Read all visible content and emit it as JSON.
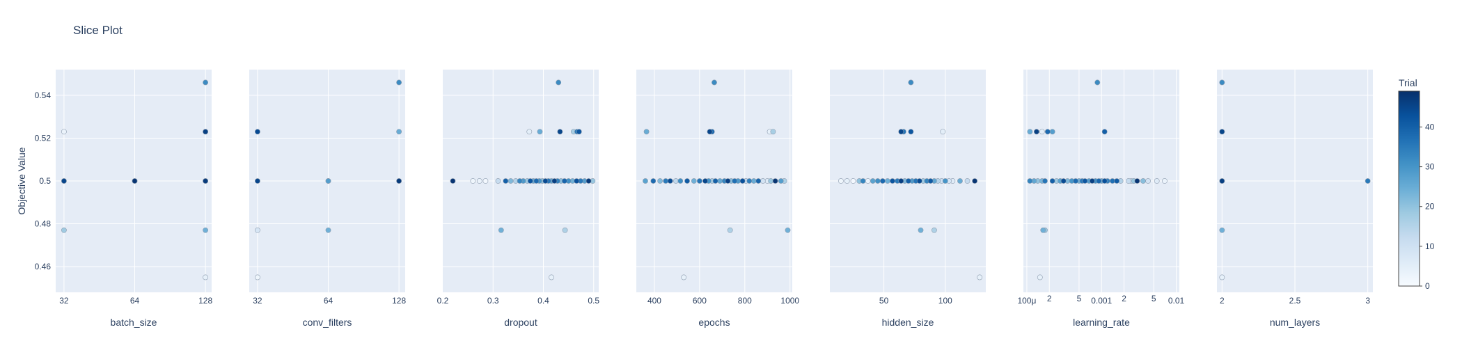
{
  "chart_data": {
    "type": "scatter",
    "title": "Slice Plot",
    "ylabel": "Objective Value",
    "ylim": [
      0.448,
      0.552
    ],
    "yticks": [
      0.46,
      0.48,
      0.5,
      0.52,
      0.54
    ],
    "ytick_labels": [
      "0.46",
      "0.48",
      "0.5",
      "0.52",
      "0.54"
    ],
    "grid": true,
    "colorbar": {
      "title": "Trial",
      "range": [
        0,
        49
      ],
      "ticks": [
        0,
        10,
        20,
        30,
        40
      ],
      "ticks_labels": [
        "0",
        "10",
        "20",
        "30",
        "40"
      ],
      "colorscale": [
        "#f7fbff",
        "#deebf7",
        "#c6dbef",
        "#9ecae1",
        "#6baed6",
        "#4292c6",
        "#2171b5",
        "#08519c",
        "#08306b"
      ]
    },
    "panels": [
      {
        "xlabel": "batch_size",
        "scale": "log",
        "xlim": [
          29.5,
          136
        ],
        "ticks": [
          32,
          64,
          128
        ],
        "tick_labels": [
          "32",
          "64",
          "128"
        ],
        "points": [
          [
            32,
            0.5,
            45
          ],
          [
            32,
            0.5,
            30
          ],
          [
            32,
            0.523,
            3
          ],
          [
            32,
            0.477,
            18
          ],
          [
            64,
            0.5,
            48
          ],
          [
            64,
            0.5,
            42
          ],
          [
            128,
            0.5,
            47
          ],
          [
            128,
            0.5,
            38
          ],
          [
            128,
            0.5,
            25
          ],
          [
            128,
            0.546,
            32
          ],
          [
            128,
            0.523,
            46
          ],
          [
            128,
            0.523,
            36
          ],
          [
            128,
            0.477,
            24
          ],
          [
            128,
            0.455,
            4
          ]
        ]
      },
      {
        "xlabel": "conv_filters",
        "scale": "log",
        "xlim": [
          29.5,
          136
        ],
        "ticks": [
          32,
          64,
          128
        ],
        "tick_labels": [
          "32",
          "64",
          "128"
        ],
        "points": [
          [
            32,
            0.5,
            45
          ],
          [
            32,
            0.523,
            44
          ],
          [
            32,
            0.477,
            8
          ],
          [
            32,
            0.455,
            2
          ],
          [
            64,
            0.5,
            28
          ],
          [
            64,
            0.5,
            20
          ],
          [
            64,
            0.477,
            24
          ],
          [
            128,
            0.5,
            47
          ],
          [
            128,
            0.5,
            36
          ],
          [
            128,
            0.546,
            32
          ],
          [
            128,
            0.523,
            25
          ]
        ]
      },
      {
        "xlabel": "dropout",
        "scale": "linear",
        "xlim": [
          0.2,
          0.51
        ],
        "ticks": [
          0.2,
          0.3,
          0.4,
          0.5
        ],
        "tick_labels": [
          "0.2",
          "0.3",
          "0.4",
          "0.5"
        ],
        "points": [
          [
            0.22,
            0.5,
            48
          ],
          [
            0.26,
            0.5,
            2
          ],
          [
            0.273,
            0.5,
            3
          ],
          [
            0.285,
            0.5,
            1
          ],
          [
            0.31,
            0.5,
            12
          ],
          [
            0.325,
            0.5,
            40
          ],
          [
            0.335,
            0.5,
            22
          ],
          [
            0.345,
            0.5,
            15
          ],
          [
            0.353,
            0.5,
            33
          ],
          [
            0.36,
            0.5,
            29
          ],
          [
            0.368,
            0.5,
            18
          ],
          [
            0.374,
            0.5,
            42
          ],
          [
            0.38,
            0.5,
            26
          ],
          [
            0.386,
            0.5,
            38
          ],
          [
            0.392,
            0.5,
            30
          ],
          [
            0.398,
            0.5,
            20
          ],
          [
            0.404,
            0.5,
            44
          ],
          [
            0.41,
            0.5,
            36
          ],
          [
            0.416,
            0.5,
            27
          ],
          [
            0.422,
            0.5,
            46
          ],
          [
            0.428,
            0.5,
            34
          ],
          [
            0.435,
            0.5,
            21
          ],
          [
            0.442,
            0.5,
            39
          ],
          [
            0.45,
            0.5,
            31
          ],
          [
            0.458,
            0.5,
            24
          ],
          [
            0.466,
            0.5,
            43
          ],
          [
            0.474,
            0.5,
            35
          ],
          [
            0.482,
            0.5,
            28
          ],
          [
            0.49,
            0.5,
            47
          ],
          [
            0.498,
            0.5,
            19
          ],
          [
            0.372,
            0.523,
            5
          ],
          [
            0.393,
            0.523,
            25
          ],
          [
            0.433,
            0.523,
            45
          ],
          [
            0.46,
            0.523,
            17
          ],
          [
            0.467,
            0.523,
            35
          ],
          [
            0.471,
            0.523,
            42
          ],
          [
            0.43,
            0.546,
            32
          ],
          [
            0.316,
            0.477,
            24
          ],
          [
            0.443,
            0.477,
            16
          ],
          [
            0.416,
            0.455,
            4
          ]
        ]
      },
      {
        "xlabel": "epochs",
        "scale": "linear",
        "xlim": [
          320,
          1010
        ],
        "ticks": [
          400,
          600,
          800,
          1000
        ],
        "tick_labels": [
          "400",
          "600",
          "800",
          "1000"
        ],
        "points": [
          [
            360,
            0.5,
            27
          ],
          [
            395,
            0.5,
            38
          ],
          [
            425,
            0.5,
            22
          ],
          [
            450,
            0.5,
            35
          ],
          [
            470,
            0.5,
            44
          ],
          [
            495,
            0.5,
            13
          ],
          [
            515,
            0.5,
            31
          ],
          [
            545,
            0.5,
            41
          ],
          [
            575,
            0.5,
            24
          ],
          [
            600,
            0.5,
            36
          ],
          [
            625,
            0.5,
            45
          ],
          [
            640,
            0.5,
            30
          ],
          [
            655,
            0.5,
            17
          ],
          [
            670,
            0.5,
            40
          ],
          [
            690,
            0.5,
            26
          ],
          [
            710,
            0.5,
            33
          ],
          [
            725,
            0.5,
            46
          ],
          [
            740,
            0.5,
            21
          ],
          [
            755,
            0.5,
            37
          ],
          [
            770,
            0.5,
            29
          ],
          [
            790,
            0.5,
            43
          ],
          [
            805,
            0.5,
            12
          ],
          [
            820,
            0.5,
            34
          ],
          [
            840,
            0.5,
            25
          ],
          [
            860,
            0.5,
            39
          ],
          [
            880,
            0.5,
            9
          ],
          [
            900,
            0.5,
            6
          ],
          [
            915,
            0.5,
            19
          ],
          [
            935,
            0.5,
            48
          ],
          [
            960,
            0.5,
            28
          ],
          [
            975,
            0.5,
            16
          ],
          [
            365,
            0.523,
            25
          ],
          [
            645,
            0.523,
            45
          ],
          [
            655,
            0.523,
            38
          ],
          [
            910,
            0.523,
            4
          ],
          [
            925,
            0.523,
            17
          ],
          [
            665,
            0.546,
            32
          ],
          [
            735,
            0.477,
            16
          ],
          [
            990,
            0.477,
            24
          ],
          [
            530,
            0.455,
            4
          ]
        ]
      },
      {
        "xlabel": "hidden_size",
        "scale": "linear",
        "xlim": [
          6,
          133
        ],
        "ticks": [
          50,
          100
        ],
        "tick_labels": [
          "50",
          "100"
        ],
        "points": [
          [
            15,
            0.5,
            2
          ],
          [
            20,
            0.5,
            4
          ],
          [
            25,
            0.5,
            1
          ],
          [
            30,
            0.5,
            20
          ],
          [
            33,
            0.5,
            33
          ],
          [
            37,
            0.5,
            3
          ],
          [
            41,
            0.5,
            27
          ],
          [
            45,
            0.5,
            31
          ],
          [
            49,
            0.5,
            38
          ],
          [
            53,
            0.5,
            24
          ],
          [
            57,
            0.5,
            42
          ],
          [
            61,
            0.5,
            35
          ],
          [
            64,
            0.5,
            46
          ],
          [
            67,
            0.5,
            22
          ],
          [
            70,
            0.5,
            40
          ],
          [
            73,
            0.5,
            29
          ],
          [
            76,
            0.5,
            36
          ],
          [
            79,
            0.5,
            44
          ],
          [
            82,
            0.5,
            18
          ],
          [
            85,
            0.5,
            33
          ],
          [
            88,
            0.5,
            41
          ],
          [
            91,
            0.5,
            26
          ],
          [
            94,
            0.5,
            15
          ],
          [
            97,
            0.5,
            10
          ],
          [
            100,
            0.5,
            30
          ],
          [
            103,
            0.5,
            8
          ],
          [
            106,
            0.5,
            6
          ],
          [
            112,
            0.5,
            25
          ],
          [
            118,
            0.5,
            12
          ],
          [
            124,
            0.5,
            48
          ],
          [
            64,
            0.523,
            45
          ],
          [
            66,
            0.523,
            36
          ],
          [
            72,
            0.523,
            42
          ],
          [
            98,
            0.523,
            5
          ],
          [
            72,
            0.546,
            32
          ],
          [
            80,
            0.477,
            24
          ],
          [
            91,
            0.477,
            16
          ],
          [
            128,
            0.455,
            4
          ]
        ]
      },
      {
        "xlabel": "learning_rate",
        "scale": "log",
        "xlim": [
          9e-05,
          0.011
        ],
        "ticks": [
          0.0001,
          0.0002,
          0.0005,
          0.001,
          0.002,
          0.005,
          0.01
        ],
        "tick_labels": [
          "100μ",
          "2",
          "5",
          "0.001",
          "2",
          "5",
          "0.01"
        ],
        "points": [
          [
            0.00011,
            0.5,
            33
          ],
          [
            0.000125,
            0.5,
            26
          ],
          [
            0.00014,
            0.5,
            20
          ],
          [
            0.00016,
            0.5,
            23
          ],
          [
            0.000175,
            0.5,
            36
          ],
          [
            0.00022,
            0.5,
            40
          ],
          [
            0.00025,
            0.5,
            18
          ],
          [
            0.00028,
            0.5,
            27
          ],
          [
            0.00031,
            0.5,
            44
          ],
          [
            0.00035,
            0.5,
            22
          ],
          [
            0.0004,
            0.5,
            30
          ],
          [
            0.00045,
            0.5,
            38
          ],
          [
            0.0005,
            0.5,
            24
          ],
          [
            0.00055,
            0.5,
            35
          ],
          [
            0.0006,
            0.5,
            42
          ],
          [
            0.00068,
            0.5,
            28
          ],
          [
            0.00075,
            0.5,
            46
          ],
          [
            0.00083,
            0.5,
            31
          ],
          [
            0.00092,
            0.5,
            39
          ],
          [
            0.001,
            0.5,
            25
          ],
          [
            0.0011,
            0.5,
            43
          ],
          [
            0.0012,
            0.5,
            34
          ],
          [
            0.0014,
            0.5,
            37
          ],
          [
            0.0016,
            0.5,
            41
          ],
          [
            0.0018,
            0.5,
            15
          ],
          [
            0.0023,
            0.5,
            12
          ],
          [
            0.0025,
            0.5,
            8
          ],
          [
            0.0027,
            0.5,
            19
          ],
          [
            0.003,
            0.5,
            48
          ],
          [
            0.0036,
            0.5,
            21
          ],
          [
            0.0042,
            0.5,
            9
          ],
          [
            0.0055,
            0.5,
            6
          ],
          [
            0.007,
            0.5,
            3
          ],
          [
            0.00011,
            0.523,
            25
          ],
          [
            0.000135,
            0.523,
            46
          ],
          [
            0.00016,
            0.523,
            5
          ],
          [
            0.00019,
            0.523,
            38
          ],
          [
            0.00022,
            0.523,
            28
          ],
          [
            0.0011,
            0.523,
            40
          ],
          [
            0.00088,
            0.546,
            32
          ],
          [
            0.000165,
            0.477,
            24
          ],
          [
            0.000175,
            0.477,
            19
          ],
          [
            0.00015,
            0.455,
            4
          ]
        ]
      },
      {
        "xlabel": "num_layers",
        "scale": "linear",
        "xlim": [
          1.965,
          3.035
        ],
        "ticks": [
          2,
          2.5,
          3
        ],
        "tick_labels": [
          "2",
          "2.5",
          "3"
        ],
        "points": [
          [
            2,
            0.5,
            46
          ],
          [
            2,
            0.5,
            38
          ],
          [
            2,
            0.546,
            32
          ],
          [
            2,
            0.523,
            45
          ],
          [
            2,
            0.523,
            40
          ],
          [
            2,
            0.477,
            24
          ],
          [
            2,
            0.455,
            4
          ],
          [
            3,
            0.5,
            35
          ]
        ]
      }
    ]
  }
}
